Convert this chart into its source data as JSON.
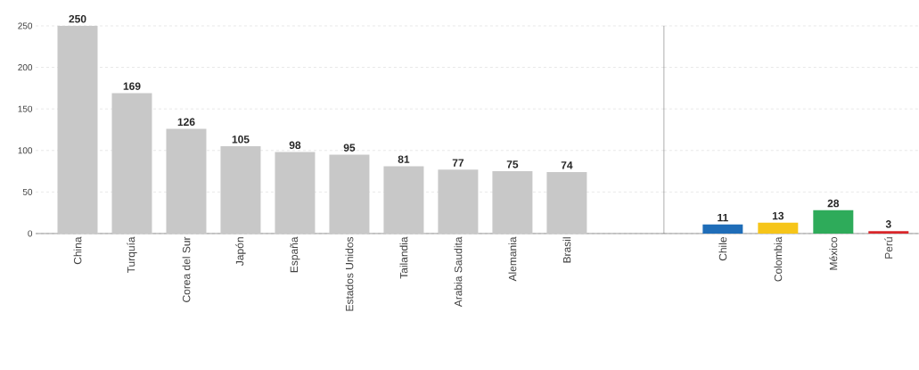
{
  "chart_data": [
    {
      "type": "bar",
      "categories": [
        "China",
        "Turquía",
        "Corea del Sur",
        "Japón",
        "España",
        "Estados Unidos",
        "Tailandia",
        "Arabia Saudita",
        "Alemania",
        "Brasil"
      ],
      "values": [
        250,
        169,
        126,
        105,
        98,
        95,
        81,
        77,
        75,
        74
      ],
      "colors": [
        "#c8c8c8",
        "#c8c8c8",
        "#c8c8c8",
        "#c8c8c8",
        "#c8c8c8",
        "#c8c8c8",
        "#c8c8c8",
        "#c8c8c8",
        "#c8c8c8",
        "#c8c8c8"
      ],
      "ylim": [
        0,
        250
      ],
      "yticks": [
        0,
        50,
        100,
        150,
        200,
        250
      ],
      "grid": "y",
      "data_labels": true
    },
    {
      "type": "bar",
      "categories": [
        "Chile",
        "Colombia",
        "México",
        "Perú"
      ],
      "values": [
        11,
        13,
        28,
        3
      ],
      "colors": [
        "#1f6db8",
        "#f6c519",
        "#2eab5a",
        "#d9262a"
      ],
      "ylim": [
        0,
        250
      ],
      "yticks": [
        0,
        50,
        100,
        150,
        200,
        250
      ],
      "grid": "y",
      "data_labels": true,
      "tick_labels": "x"
    }
  ]
}
